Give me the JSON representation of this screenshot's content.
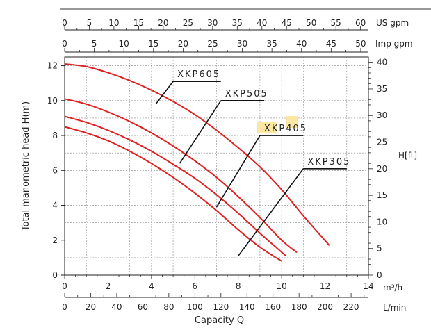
{
  "chart_data": {
    "type": "line",
    "xlabel": "Capacity Q",
    "ylabel": "Total manometric head H(m)",
    "y2label": "H[ft]",
    "xlim": [
      0,
      14
    ],
    "ylim": [
      0,
      12.5
    ],
    "grid": true,
    "x_primary": {
      "unit": "m³/h",
      "ticks": [
        "0",
        "2",
        "4",
        "6",
        "8",
        "10",
        "12",
        "14"
      ],
      "minor_step": 1
    },
    "x_lmin": {
      "unit": "L/min",
      "range": [
        0,
        233.3
      ],
      "ticks": [
        "0",
        "20",
        "40",
        "60",
        "80",
        "100",
        "120",
        "140",
        "160",
        "180",
        "200",
        "220"
      ]
    },
    "x_usgpm": {
      "unit": "US gpm",
      "range": [
        0,
        61.6
      ],
      "ticks": [
        "0",
        "5",
        "10",
        "15",
        "20",
        "25",
        "30",
        "35",
        "40",
        "45",
        "50",
        "55",
        "60"
      ]
    },
    "x_impgpm": {
      "unit": "Imp gpm",
      "range": [
        0,
        51.3
      ],
      "ticks": [
        "0",
        "5",
        "10",
        "15",
        "20",
        "25",
        "30",
        "35",
        "40",
        "45",
        "50"
      ]
    },
    "y_ticks": [
      "0",
      "2",
      "4",
      "6",
      "8",
      "10",
      "12"
    ],
    "y2": {
      "unit": "H[ft]",
      "range": [
        0,
        41
      ],
      "ticks": [
        "0",
        "5",
        "10",
        "15",
        "20",
        "25",
        "30",
        "35",
        "40"
      ]
    },
    "series": [
      {
        "name": "XKP605",
        "color": "#e02020",
        "x": [
          0,
          1,
          2,
          3,
          4,
          5,
          6,
          7,
          8,
          9,
          10,
          11,
          12.2
        ],
        "y": [
          12.1,
          11.95,
          11.6,
          11.15,
          10.6,
          9.95,
          9.2,
          8.3,
          7.3,
          6.2,
          4.9,
          3.4,
          1.7
        ]
      },
      {
        "name": "XKP505",
        "color": "#e02020",
        "x": [
          0,
          1,
          2,
          3,
          4,
          5,
          6,
          7,
          8,
          9,
          10,
          10.7
        ],
        "y": [
          10.1,
          9.8,
          9.35,
          8.8,
          8.15,
          7.4,
          6.55,
          5.6,
          4.5,
          3.3,
          2.0,
          1.3
        ]
      },
      {
        "name": "XKP405",
        "color": "#e02020",
        "x": [
          0,
          1,
          2,
          3,
          4,
          5,
          6,
          7,
          8,
          9,
          10.2
        ],
        "y": [
          9.1,
          8.75,
          8.3,
          7.75,
          7.1,
          6.35,
          5.55,
          4.6,
          3.55,
          2.4,
          1.1
        ]
      },
      {
        "name": "XKP305",
        "color": "#e02020",
        "x": [
          0,
          1,
          2,
          3,
          4,
          5,
          6,
          7,
          8,
          9,
          10
        ],
        "y": [
          8.5,
          8.15,
          7.7,
          7.1,
          6.4,
          5.6,
          4.7,
          3.7,
          2.6,
          1.6,
          0.8
        ]
      }
    ],
    "labels": [
      {
        "series": "XKP605",
        "text": "XKP605",
        "label_at": [
          5.0,
          11.1
        ],
        "line_end": [
          7.2,
          11.1
        ],
        "point": [
          4.2,
          9.8
        ],
        "highlight": false
      },
      {
        "series": "XKP505",
        "text": "XKP505",
        "label_at": [
          7.2,
          10.0
        ],
        "line_end": [
          9.2,
          10.0
        ],
        "point": [
          5.3,
          6.4
        ],
        "highlight": false
      },
      {
        "series": "XKP405",
        "text": "XKP405",
        "label_at": [
          9.0,
          8.0
        ],
        "line_end": [
          11.0,
          8.0
        ],
        "point": [
          7.0,
          3.9
        ],
        "highlight": true
      },
      {
        "series": "XKP305",
        "text": "XKP305",
        "label_at": [
          11.0,
          6.1
        ],
        "line_end": [
          13.0,
          6.1
        ],
        "point": [
          8.0,
          1.1
        ],
        "highlight": false
      }
    ],
    "highlight_color": "#fbe6a2"
  }
}
